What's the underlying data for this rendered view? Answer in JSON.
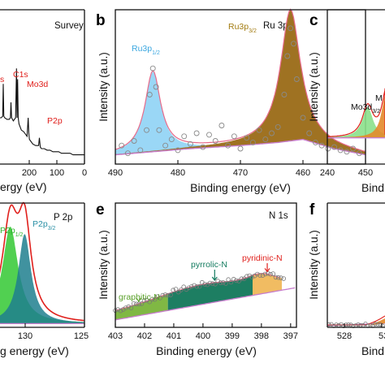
{
  "chart_data": [
    {
      "id": "a",
      "type": "line",
      "label": "",
      "panel_title": "Survey",
      "xlabel": "ergy (eV)",
      "ylabel": "",
      "xlim": [
        300,
        0
      ],
      "xticks": [
        "200",
        "100",
        "0"
      ],
      "annotations": [
        {
          "text": "s",
          "color": "#e0201c"
        },
        {
          "text": "C1s",
          "color": "#e0201c"
        },
        {
          "text": "Mo3d",
          "color": "#e0201c"
        },
        {
          "text": "P2p",
          "color": "#e0201c"
        }
      ],
      "series": [
        {
          "x": [
            300,
            290,
            285,
            283,
            281,
            278,
            270,
            262,
            258,
            256,
            254,
            248,
            240,
            237,
            235,
            233,
            231,
            228,
            220,
            212,
            200,
            196,
            194,
            192,
            188,
            180,
            170,
            160,
            157,
            154,
            150,
            140,
            130,
            120,
            110,
            100,
            90,
            80,
            70,
            60,
            50,
            40,
            30,
            20,
            10,
            0
          ],
          "y": [
            0.3,
            0.3,
            0.31,
            0.52,
            0.31,
            0.3,
            0.29,
            0.29,
            0.3,
            0.4,
            0.3,
            0.28,
            0.3,
            0.62,
            0.3,
            0.55,
            0.3,
            0.26,
            0.22,
            0.21,
            0.18,
            0.3,
            0.2,
            0.16,
            0.15,
            0.13,
            0.12,
            0.12,
            0.17,
            0.11,
            0.1,
            0.1,
            0.09,
            0.09,
            0.08,
            0.08,
            0.08,
            0.07,
            0.07,
            0.07,
            0.07,
            0.06,
            0.06,
            0.06,
            0.06,
            0.06
          ]
        }
      ]
    },
    {
      "id": "b",
      "type": "area",
      "label": "b",
      "panel_title": "Ru 3p",
      "xlabel": "Binding energy (eV)",
      "ylabel": "Intensity (a.u.)",
      "xlim": [
        490,
        450
      ],
      "xticks": [
        "490",
        "480",
        "470",
        "460",
        "450"
      ],
      "annotations": [
        {
          "text": "Ru3p",
          "sub": "1/2",
          "color": "#3aa7e0",
          "x": 484
        },
        {
          "text": "Ru3p",
          "sub": "3/2",
          "color": "#a27b10",
          "x": 462
        }
      ],
      "series": [
        {
          "name": "Ru3p1/2",
          "color": "#8fd3f5",
          "center": 484.0,
          "height": 0.52,
          "width": 1.5
        },
        {
          "name": "Ru3p3/2",
          "color": "#9a6a16",
          "center": 462.0,
          "height": 0.85,
          "width": 1.9
        },
        {
          "name": "background",
          "color": "#c77dcc",
          "points": [
            [
              490,
              0.06
            ],
            [
              484,
              0.08
            ],
            [
              478,
              0.1
            ],
            [
              470,
              0.12
            ],
            [
              464,
              0.14
            ],
            [
              460,
              0.16
            ],
            [
              455,
              0.1
            ],
            [
              450,
              0.06
            ]
          ]
        }
      ],
      "scatter_points": [
        [
          489,
          0.12
        ],
        [
          488,
          0.07
        ],
        [
          487,
          0.15
        ],
        [
          486,
          0.09
        ],
        [
          485,
          0.22
        ],
        [
          484.5,
          0.45
        ],
        [
          484,
          0.62
        ],
        [
          483.5,
          0.5
        ],
        [
          483,
          0.22
        ],
        [
          482,
          0.12
        ],
        [
          481,
          0.16
        ],
        [
          480,
          0.09
        ],
        [
          479,
          0.18
        ],
        [
          478,
          0.13
        ],
        [
          477,
          0.2
        ],
        [
          476,
          0.11
        ],
        [
          475,
          0.19
        ],
        [
          474,
          0.15
        ],
        [
          473,
          0.25
        ],
        [
          472,
          0.12
        ],
        [
          471,
          0.18
        ],
        [
          470,
          0.1
        ],
        [
          469,
          0.17
        ],
        [
          468,
          0.14
        ],
        [
          467,
          0.22
        ],
        [
          466,
          0.16
        ],
        [
          465,
          0.2
        ],
        [
          464,
          0.24
        ],
        [
          463,
          0.45
        ],
        [
          462.5,
          0.7
        ],
        [
          462,
          0.88
        ],
        [
          461.5,
          0.78
        ],
        [
          461,
          0.55
        ],
        [
          460,
          0.3
        ],
        [
          459,
          0.2
        ],
        [
          458,
          0.14
        ],
        [
          457,
          0.12
        ],
        [
          456,
          0.1
        ],
        [
          455,
          0.11
        ],
        [
          454,
          0.09
        ],
        [
          453,
          0.08
        ],
        [
          452,
          0.1
        ],
        [
          451,
          0.07
        ]
      ]
    },
    {
      "id": "c",
      "type": "area",
      "label": "c",
      "panel_title": "",
      "xlabel": "Bind",
      "ylabel": "Intensity (a.u.)",
      "xlim": [
        240,
        220
      ],
      "xticks": [
        "240"
      ],
      "annotations": [
        {
          "text": "Mo3d",
          "sub": "3/2",
          "color": "#111111",
          "x": 233
        },
        {
          "text": "M",
          "sub": "",
          "color": "#111111",
          "x": 230
        }
      ],
      "series": [
        {
          "name": "Mo3d3/2",
          "color": "#8be08b",
          "center": 233.0,
          "height": 0.2,
          "width": 1.1
        },
        {
          "name": "Mo3d5/2",
          "color": "#e38a2a",
          "center": 229.8,
          "height": 0.3,
          "width": 0.9
        }
      ]
    },
    {
      "id": "d",
      "type": "area",
      "label": "",
      "panel_title": "P 2p",
      "xlabel": "g energy (eV)",
      "ylabel": "",
      "xlim": [
        140,
        125
      ],
      "xticks": [
        "130",
        "125"
      ],
      "annotations": [
        {
          "text": "P2p",
          "sub": "1/2",
          "color": "#2bb52b",
          "x": 131.2
        },
        {
          "text": "P2p",
          "sub": "3/2",
          "color": "#2a8fa5",
          "x": 130
        }
      ],
      "series": [
        {
          "name": "P2p1/2",
          "color": "#32c832",
          "center": 131.2,
          "height": 0.78,
          "width": 0.8
        },
        {
          "name": "P2p3/2",
          "color": "#1f7f8e",
          "center": 130.0,
          "height": 0.72,
          "width": 0.65
        }
      ]
    },
    {
      "id": "e",
      "type": "area",
      "label": "e",
      "panel_title": "N 1s",
      "xlabel": "Binding energy (eV)",
      "ylabel": "Intensity (a.u.)",
      "xlim": [
        403,
        396.8
      ],
      "xticks": [
        "403",
        "402",
        "401",
        "400",
        "399",
        "398",
        "397"
      ],
      "annotations": [
        {
          "text": "graphitic-N",
          "color": "#5aa02a",
          "x": 402.2
        },
        {
          "text": "pyrrolic-N",
          "color": "#127a5e",
          "x": 399.6
        },
        {
          "text": "pyridinic-N",
          "color": "#e0201c",
          "x": 397.8
        }
      ],
      "series": [
        {
          "name": "graphitic-N",
          "color": "#79b43a",
          "x_range": [
            403,
            401.2
          ]
        },
        {
          "name": "pyrrolic-N",
          "color": "#11775a",
          "x_range": [
            401.2,
            398.3
          ]
        },
        {
          "name": "pyridinic-N",
          "color": "#f0b85a",
          "x_range": [
            398.3,
            397.3
          ]
        }
      ]
    },
    {
      "id": "f",
      "type": "area",
      "label": "f",
      "panel_title": "",
      "xlabel": "Bind",
      "ylabel": "Intensity (a.u.)",
      "xlim": [
        529,
        527
      ],
      "xticks": [
        "528",
        "53"
      ],
      "annotations": [],
      "series": []
    }
  ]
}
